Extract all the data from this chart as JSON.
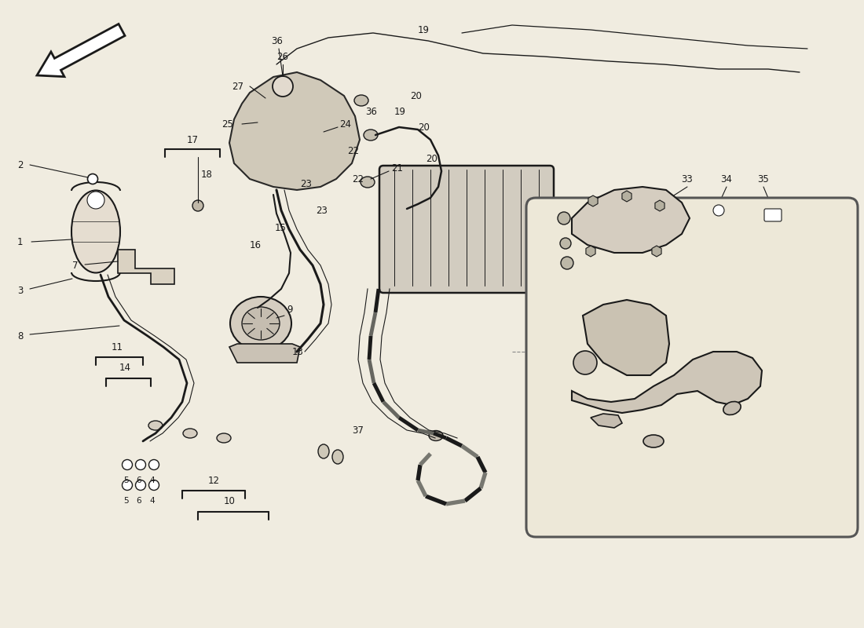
{
  "background_color": "#f0ece0",
  "fig_width": 11.0,
  "fig_height": 8.0,
  "line_color": "#1a1a1a",
  "label_color": "#1a1a1a",
  "inset_border_color": "#555555"
}
